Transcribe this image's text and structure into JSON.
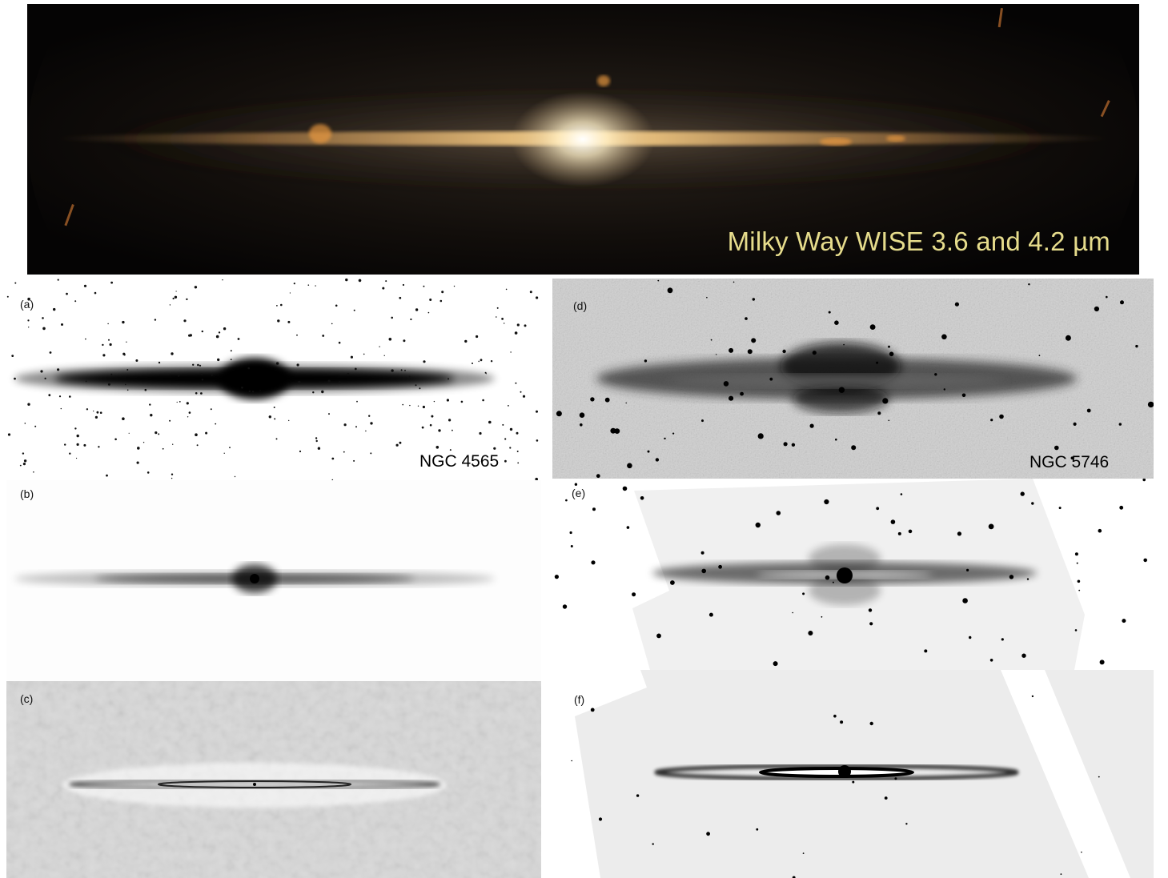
{
  "banner": {
    "caption": "Milky Way WISE 3.6 and 4.2 µm"
  },
  "panels": {
    "a": {
      "label": "(a)",
      "galaxy": "NGC 4565"
    },
    "b": {
      "label": "(b)"
    },
    "c": {
      "label": "(c)"
    },
    "d": {
      "label": "(d)",
      "galaxy": "NGC 5746"
    },
    "e": {
      "label": "(e)"
    },
    "f": {
      "label": "(f)"
    }
  },
  "colors": {
    "banner_bg": "#0a0807",
    "banner_glow": "#fff2c8",
    "dust_lane": "#f0a03c",
    "caption": "#e6dc8c"
  }
}
